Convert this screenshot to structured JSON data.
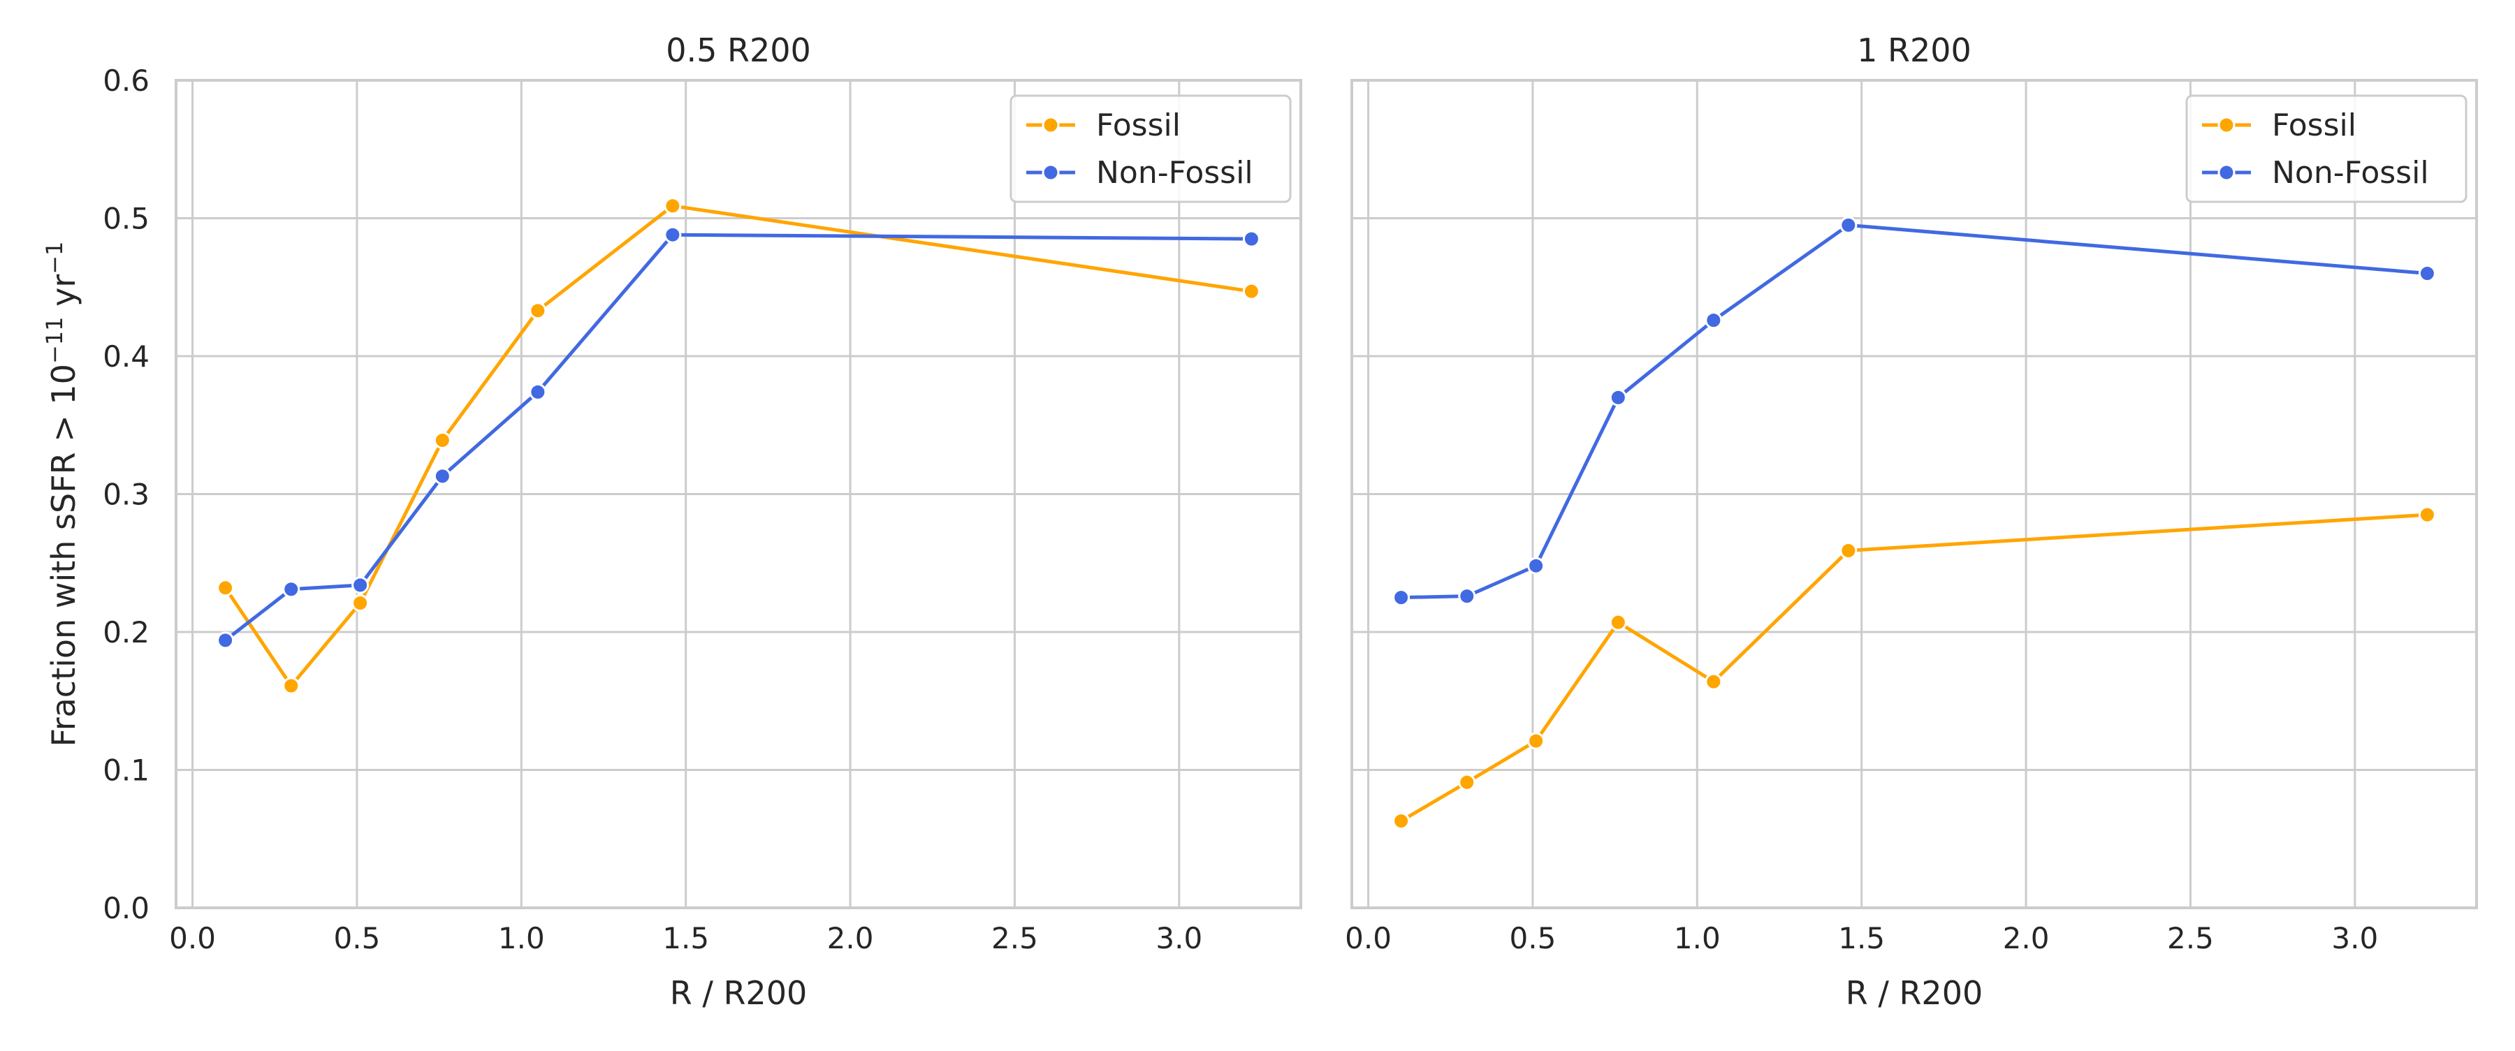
{
  "chart_data": [
    {
      "type": "line",
      "title": "0.5 R200",
      "xlabel": "R / R200",
      "ylabel": "Fraction with sSFR > 10",
      "ylabel_superscript": "−11",
      "ylabel_unit": "yr",
      "ylabel_unit_superscript": "−1",
      "xlim": [
        -0.05,
        3.37
      ],
      "ylim": [
        0.0,
        0.6
      ],
      "xticks": [
        0.0,
        0.5,
        1.0,
        1.5,
        2.0,
        2.5,
        3.0
      ],
      "xtick_labels": [
        "0.0",
        "0.5",
        "1.0",
        "1.5",
        "2.0",
        "2.5",
        "3.0"
      ],
      "yticks": [
        0.0,
        0.1,
        0.2,
        0.3,
        0.4,
        0.5,
        0.6
      ],
      "ytick_labels": [
        "0.0",
        "0.1",
        "0.2",
        "0.3",
        "0.4",
        "0.5",
        "0.6"
      ],
      "grid": true,
      "legend_position": "top-right",
      "x": [
        0.1,
        0.3,
        0.51,
        0.76,
        1.05,
        1.46,
        3.22
      ],
      "series": [
        {
          "name": "Fossil",
          "color": "#ffa500",
          "values": [
            0.232,
            0.161,
            0.221,
            0.339,
            0.433,
            0.509,
            0.447
          ]
        },
        {
          "name": "Non-Fossil",
          "color": "#4169e1",
          "values": [
            0.194,
            0.231,
            0.234,
            0.313,
            0.374,
            0.488,
            0.485
          ]
        }
      ]
    },
    {
      "type": "line",
      "title": "1 R200",
      "xlabel": "R / R200",
      "xlim": [
        -0.05,
        3.37
      ],
      "ylim": [
        0.0,
        0.6
      ],
      "xticks": [
        0.0,
        0.5,
        1.0,
        1.5,
        2.0,
        2.5,
        3.0
      ],
      "xtick_labels": [
        "0.0",
        "0.5",
        "1.0",
        "1.5",
        "2.0",
        "2.5",
        "3.0"
      ],
      "yticks": [
        0.0,
        0.1,
        0.2,
        0.3,
        0.4,
        0.5,
        0.6
      ],
      "grid": true,
      "legend_position": "top-right",
      "x": [
        0.1,
        0.3,
        0.51,
        0.76,
        1.05,
        1.46,
        3.22
      ],
      "series": [
        {
          "name": "Fossil",
          "color": "#ffa500",
          "values": [
            0.063,
            0.091,
            0.121,
            0.207,
            0.164,
            0.259,
            0.285
          ]
        },
        {
          "name": "Non-Fossil",
          "color": "#4169e1",
          "values": [
            0.225,
            0.226,
            0.248,
            0.37,
            0.426,
            0.495,
            0.46
          ]
        }
      ]
    }
  ]
}
